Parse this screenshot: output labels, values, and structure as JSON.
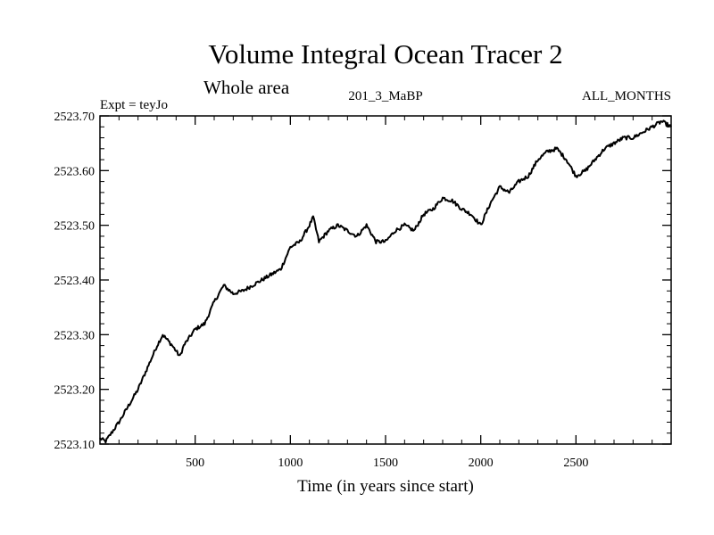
{
  "chart_data": {
    "type": "line",
    "title": "Volume Integral Ocean Tracer 2",
    "subtitle": "Whole area",
    "experiment": "Expt = teyJo",
    "run_label": "201_3_MaBP",
    "period_label": "ALL_MONTHS",
    "xlabel": "Time (in years since start)",
    "ylabel": "",
    "xlim": [
      0,
      3000
    ],
    "ylim": [
      2523.1,
      2523.7
    ],
    "xticks": [
      500,
      1000,
      1500,
      2000,
      2500
    ],
    "xtick_labels": [
      "500",
      "1000",
      "1500",
      "2000",
      "2500"
    ],
    "yticks": [
      2523.1,
      2523.2,
      2523.3,
      2523.4,
      2523.5,
      2523.6,
      2523.7
    ],
    "ytick_labels": [
      "2523.10",
      "2523.20",
      "2523.30",
      "2523.40",
      "2523.50",
      "2523.60",
      "2523.70"
    ],
    "series": [
      {
        "name": "Volume Integral Ocean Tracer 2",
        "x": [
          0,
          30,
          60,
          100,
          150,
          200,
          250,
          300,
          330,
          380,
          420,
          440,
          500,
          550,
          600,
          650,
          700,
          750,
          800,
          850,
          900,
          950,
          1000,
          1050,
          1100,
          1120,
          1150,
          1200,
          1250,
          1300,
          1350,
          1400,
          1450,
          1500,
          1550,
          1600,
          1650,
          1700,
          1750,
          1800,
          1850,
          1900,
          1950,
          2000,
          2050,
          2100,
          2150,
          2200,
          2250,
          2300,
          2350,
          2400,
          2450,
          2500,
          2550,
          2600,
          2650,
          2700,
          2750,
          2800,
          2850,
          2900,
          2950,
          3000
        ],
        "y": [
          2523.11,
          2523.105,
          2523.12,
          2523.14,
          2523.17,
          2523.2,
          2523.24,
          2523.28,
          2523.3,
          2523.28,
          2523.26,
          2523.28,
          2523.31,
          2523.32,
          2523.36,
          2523.39,
          2523.375,
          2523.38,
          2523.39,
          2523.4,
          2523.41,
          2523.42,
          2523.46,
          2523.47,
          2523.5,
          2523.515,
          2523.47,
          2523.49,
          2523.5,
          2523.49,
          2523.48,
          2523.5,
          2523.47,
          2523.47,
          2523.49,
          2523.5,
          2523.49,
          2523.52,
          2523.53,
          2523.55,
          2523.545,
          2523.53,
          2523.52,
          2523.5,
          2523.54,
          2523.57,
          2523.56,
          2523.58,
          2523.59,
          2523.62,
          2523.635,
          2523.64,
          2523.62,
          2523.59,
          2523.6,
          2523.62,
          2523.64,
          2523.65,
          2523.66,
          2523.66,
          2523.67,
          2523.68,
          2523.69,
          2523.68
        ]
      }
    ]
  }
}
